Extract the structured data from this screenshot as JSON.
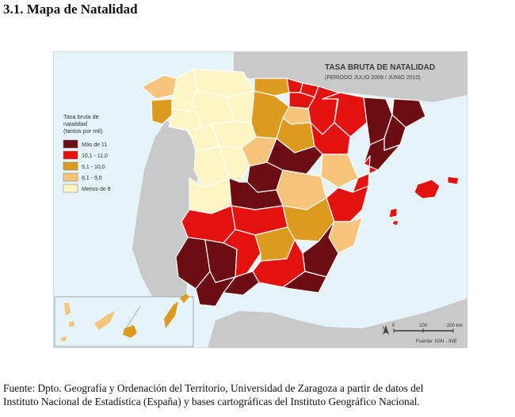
{
  "page": {
    "heading": "3.1. Mapa de Natalidad",
    "source_line1": "Fuente: Dpto. Geografía y Ordenación del Territorio, Universidad de Zaragoza a partir de datos del",
    "source_line2": "Instituto Nacional de Estadística (España) y bases cartográficas del Instituto Geográfico Nacional."
  },
  "map": {
    "title": "TASA BRUTA DE NATALIDAD",
    "subtitle": "(PERIODO JULIO 2009 / JUNIO 2010)",
    "legend": {
      "title_lines": [
        "Tasa bruta de",
        "natalidad",
        "(tantos por mil)"
      ],
      "classes": [
        {
          "label": "Más de 11",
          "color": "#6b0d12"
        },
        {
          "label": "10,1 - 11,0",
          "color": "#e3120f"
        },
        {
          "label": "9,1 - 10,0",
          "color": "#dc9a1f"
        },
        {
          "label": "8,1 - 9,0",
          "color": "#f6c47a"
        },
        {
          "label": "Menos de 8",
          "color": "#fdf6c4"
        }
      ]
    },
    "scale": {
      "ticks": [
        "0",
        "100",
        "200 km"
      ]
    },
    "north": "N",
    "credit": "Fuente: IGN - INE",
    "colors": {
      "sea": "#e4f4f9",
      "land_other": "#c9c9c9",
      "border": "#ffffff"
    }
  }
}
